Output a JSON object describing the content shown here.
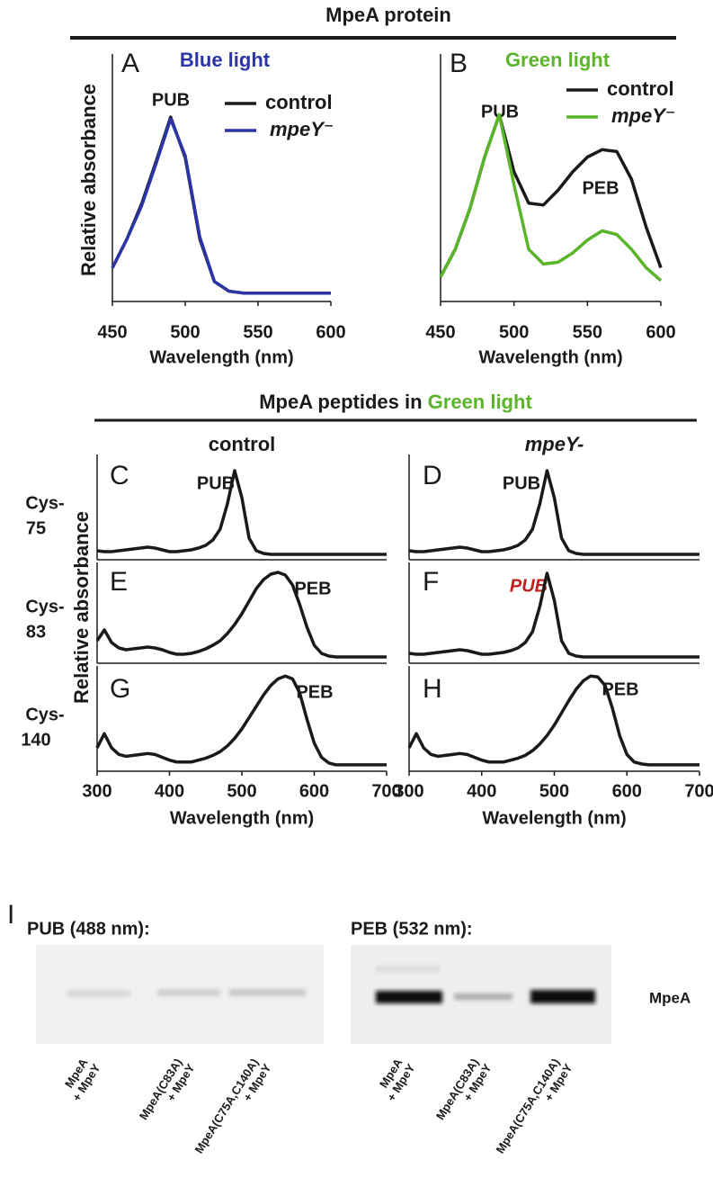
{
  "headers": {
    "top": "MpeA protein",
    "middle_start": "MpeA peptides in ",
    "middle_colored": "Green light"
  },
  "chart_data": [
    {
      "type": "line",
      "panel": "A",
      "title": "Blue light",
      "title_color": "#2b35a5",
      "ylabel": "Relative absorbance",
      "xlabel": "Wavelength (nm)",
      "annotations": [
        "PUB"
      ],
      "legend": true,
      "x": [
        450,
        460,
        470,
        480,
        490,
        500,
        510,
        520,
        530,
        540,
        550,
        560,
        570,
        580,
        590,
        600
      ],
      "xlim": [
        450,
        600
      ],
      "xticks": [
        450,
        500,
        550,
        600
      ],
      "ylim": [
        0,
        1
      ],
      "series": [
        {
          "name": "control",
          "color": "#1a1a1a",
          "values": [
            0.15,
            0.3,
            0.48,
            0.7,
            0.93,
            0.72,
            0.3,
            0.08,
            0.03,
            0.02,
            0.02,
            0.02,
            0.02,
            0.02,
            0.02,
            0.02
          ]
        },
        {
          "name": "mpeY⁻",
          "color": "#2b35a5",
          "values": [
            0.15,
            0.3,
            0.47,
            0.69,
            0.92,
            0.73,
            0.31,
            0.08,
            0.03,
            0.02,
            0.02,
            0.02,
            0.02,
            0.02,
            0.02,
            0.02
          ]
        }
      ]
    },
    {
      "type": "line",
      "panel": "B",
      "title": "Green light",
      "title_color": "#5ab52a",
      "xlabel": "Wavelength (nm)",
      "annotations": [
        "PUB",
        "PEB"
      ],
      "legend": true,
      "x": [
        450,
        460,
        470,
        480,
        490,
        500,
        510,
        520,
        530,
        540,
        550,
        560,
        570,
        580,
        590,
        600
      ],
      "xlim": [
        450,
        600
      ],
      "xticks": [
        450,
        500,
        550,
        600
      ],
      "ylim": [
        0,
        1
      ],
      "series": [
        {
          "name": "control",
          "color": "#1a1a1a",
          "values": [
            0.05,
            0.2,
            0.42,
            0.7,
            0.93,
            0.62,
            0.45,
            0.44,
            0.52,
            0.62,
            0.7,
            0.74,
            0.73,
            0.58,
            0.32,
            0.1
          ]
        },
        {
          "name": "mpeY⁻",
          "color": "#5ab52a",
          "values": [
            0.05,
            0.2,
            0.42,
            0.7,
            0.93,
            0.55,
            0.2,
            0.12,
            0.13,
            0.18,
            0.25,
            0.3,
            0.28,
            0.2,
            0.1,
            0.03
          ]
        }
      ]
    },
    {
      "type": "line",
      "panel": "C",
      "column_title": "control",
      "row_label": [
        "Cys-",
        "75"
      ],
      "annotations": [
        "PUB"
      ],
      "x": [
        300,
        310,
        320,
        330,
        340,
        350,
        360,
        370,
        380,
        390,
        400,
        410,
        420,
        430,
        440,
        450,
        460,
        470,
        480,
        490,
        500,
        510,
        520,
        530,
        540,
        550,
        560,
        570,
        580,
        590,
        600,
        610,
        620,
        630,
        640,
        650,
        660,
        670,
        680,
        690,
        700
      ],
      "xlim": [
        300,
        700
      ],
      "ylim": [
        0,
        1
      ],
      "series": [
        {
          "color": "#1a1a1a",
          "values": [
            0.06,
            0.05,
            0.05,
            0.06,
            0.07,
            0.08,
            0.09,
            0.1,
            0.09,
            0.07,
            0.05,
            0.05,
            0.06,
            0.07,
            0.09,
            0.12,
            0.18,
            0.3,
            0.58,
            0.95,
            0.65,
            0.2,
            0.06,
            0.03,
            0.02,
            0.02,
            0.02,
            0.02,
            0.02,
            0.02,
            0.02,
            0.02,
            0.02,
            0.02,
            0.02,
            0.02,
            0.02,
            0.02,
            0.02,
            0.02,
            0.02
          ]
        }
      ]
    },
    {
      "type": "line",
      "panel": "D",
      "column_title": "mpeY-",
      "annotations": [
        "PUB"
      ],
      "x": [
        300,
        310,
        320,
        330,
        340,
        350,
        360,
        370,
        380,
        390,
        400,
        410,
        420,
        430,
        440,
        450,
        460,
        470,
        480,
        490,
        500,
        510,
        520,
        530,
        540,
        550,
        560,
        570,
        580,
        590,
        600,
        610,
        620,
        630,
        640,
        650,
        660,
        670,
        680,
        690,
        700
      ],
      "xlim": [
        300,
        700
      ],
      "ylim": [
        0,
        1
      ],
      "series": [
        {
          "color": "#1a1a1a",
          "values": [
            0.06,
            0.05,
            0.05,
            0.06,
            0.07,
            0.08,
            0.09,
            0.1,
            0.09,
            0.07,
            0.05,
            0.05,
            0.06,
            0.07,
            0.09,
            0.12,
            0.18,
            0.3,
            0.58,
            0.95,
            0.65,
            0.2,
            0.06,
            0.03,
            0.02,
            0.02,
            0.02,
            0.02,
            0.02,
            0.02,
            0.02,
            0.02,
            0.02,
            0.02,
            0.02,
            0.02,
            0.02,
            0.02,
            0.02,
            0.02,
            0.02
          ]
        }
      ]
    },
    {
      "type": "line",
      "panel": "E",
      "ylabel": "Relative absorbance",
      "row_label": [
        "Cys-",
        "83"
      ],
      "annotations": [
        "PEB"
      ],
      "x": [
        300,
        310,
        320,
        330,
        340,
        350,
        360,
        370,
        380,
        390,
        400,
        410,
        420,
        430,
        440,
        450,
        460,
        470,
        480,
        490,
        500,
        510,
        520,
        530,
        540,
        550,
        560,
        570,
        580,
        590,
        600,
        610,
        620,
        630,
        640,
        650,
        660,
        670,
        680,
        690,
        700
      ],
      "xlim": [
        300,
        700
      ],
      "ylim": [
        0,
        1
      ],
      "series": [
        {
          "color": "#1a1a1a",
          "values": [
            0.2,
            0.32,
            0.18,
            0.12,
            0.1,
            0.11,
            0.12,
            0.13,
            0.12,
            0.1,
            0.07,
            0.05,
            0.05,
            0.06,
            0.08,
            0.11,
            0.15,
            0.2,
            0.28,
            0.38,
            0.5,
            0.64,
            0.78,
            0.88,
            0.94,
            0.96,
            0.93,
            0.82,
            0.6,
            0.35,
            0.15,
            0.06,
            0.03,
            0.02,
            0.02,
            0.02,
            0.02,
            0.02,
            0.02,
            0.02,
            0.02
          ]
        }
      ]
    },
    {
      "type": "line",
      "panel": "F",
      "annotations": [
        "PUB"
      ],
      "annotation_color": "#c0201a",
      "x": [
        300,
        310,
        320,
        330,
        340,
        350,
        360,
        370,
        380,
        390,
        400,
        410,
        420,
        430,
        440,
        450,
        460,
        470,
        480,
        490,
        500,
        510,
        520,
        530,
        540,
        550,
        560,
        570,
        580,
        590,
        600,
        610,
        620,
        630,
        640,
        650,
        660,
        670,
        680,
        690,
        700
      ],
      "xlim": [
        300,
        700
      ],
      "ylim": [
        0,
        1
      ],
      "series": [
        {
          "color": "#1a1a1a",
          "values": [
            0.06,
            0.05,
            0.05,
            0.06,
            0.07,
            0.08,
            0.09,
            0.1,
            0.09,
            0.07,
            0.05,
            0.05,
            0.06,
            0.07,
            0.09,
            0.12,
            0.18,
            0.3,
            0.58,
            0.95,
            0.65,
            0.2,
            0.06,
            0.03,
            0.02,
            0.02,
            0.02,
            0.02,
            0.02,
            0.02,
            0.02,
            0.02,
            0.02,
            0.02,
            0.02,
            0.02,
            0.02,
            0.02,
            0.02,
            0.02,
            0.02
          ]
        }
      ]
    },
    {
      "type": "line",
      "panel": "G",
      "row_label": [
        "Cys-",
        "140"
      ],
      "annotations": [
        "PEB"
      ],
      "xlabel": "Wavelength (nm)",
      "xticks": [
        300,
        400,
        500,
        600,
        700
      ],
      "x": [
        300,
        310,
        320,
        330,
        340,
        350,
        360,
        370,
        380,
        390,
        400,
        410,
        420,
        430,
        440,
        450,
        460,
        470,
        480,
        490,
        500,
        510,
        520,
        530,
        540,
        550,
        560,
        570,
        580,
        590,
        600,
        610,
        620,
        630,
        640,
        650,
        660,
        670,
        680,
        690,
        700
      ],
      "xlim": [
        300,
        700
      ],
      "ylim": [
        0,
        1
      ],
      "series": [
        {
          "color": "#1a1a1a",
          "values": [
            0.2,
            0.35,
            0.2,
            0.13,
            0.11,
            0.12,
            0.13,
            0.14,
            0.13,
            0.1,
            0.07,
            0.05,
            0.05,
            0.05,
            0.07,
            0.09,
            0.12,
            0.16,
            0.22,
            0.3,
            0.4,
            0.52,
            0.64,
            0.76,
            0.86,
            0.93,
            0.96,
            0.93,
            0.78,
            0.5,
            0.25,
            0.1,
            0.04,
            0.02,
            0.02,
            0.02,
            0.02,
            0.02,
            0.02,
            0.02,
            0.02
          ]
        }
      ]
    },
    {
      "type": "line",
      "panel": "H",
      "annotations": [
        "PEB"
      ],
      "xlabel": "Wavelength (nm)",
      "xticks": [
        300,
        400,
        500,
        600,
        700
      ],
      "x": [
        300,
        310,
        320,
        330,
        340,
        350,
        360,
        370,
        380,
        390,
        400,
        410,
        420,
        430,
        440,
        450,
        460,
        470,
        480,
        490,
        500,
        510,
        520,
        530,
        540,
        550,
        560,
        570,
        580,
        590,
        600,
        610,
        620,
        630,
        640,
        650,
        660,
        670,
        680,
        690,
        700
      ],
      "xlim": [
        300,
        700
      ],
      "ylim": [
        0,
        1
      ],
      "series": [
        {
          "color": "#1a1a1a",
          "values": [
            0.2,
            0.35,
            0.2,
            0.13,
            0.11,
            0.12,
            0.13,
            0.14,
            0.13,
            0.1,
            0.07,
            0.05,
            0.05,
            0.05,
            0.07,
            0.09,
            0.12,
            0.17,
            0.24,
            0.33,
            0.44,
            0.57,
            0.7,
            0.82,
            0.91,
            0.96,
            0.95,
            0.86,
            0.62,
            0.33,
            0.13,
            0.05,
            0.03,
            0.02,
            0.02,
            0.02,
            0.02,
            0.02,
            0.02,
            0.02,
            0.02
          ]
        }
      ]
    }
  ],
  "gel": {
    "panel": "I",
    "band_label": "MpeA",
    "blots": [
      {
        "title": "PUB (488 nm):",
        "lanes": [
          [
            "MpeA",
            "+ MpeY"
          ],
          [
            "MpeA(C83A)",
            "+ MpeY"
          ],
          [
            "MpeA(C75A,C140A)",
            "+ MpeY"
          ]
        ]
      },
      {
        "title": "PEB (532 nm):",
        "lanes": [
          [
            "MpeA",
            "+ MpeY"
          ],
          [
            "MpeA(C83A)",
            "+ MpeY"
          ],
          [
            "MpeA(C75A,C140A)",
            "+ MpeY"
          ]
        ]
      }
    ]
  }
}
